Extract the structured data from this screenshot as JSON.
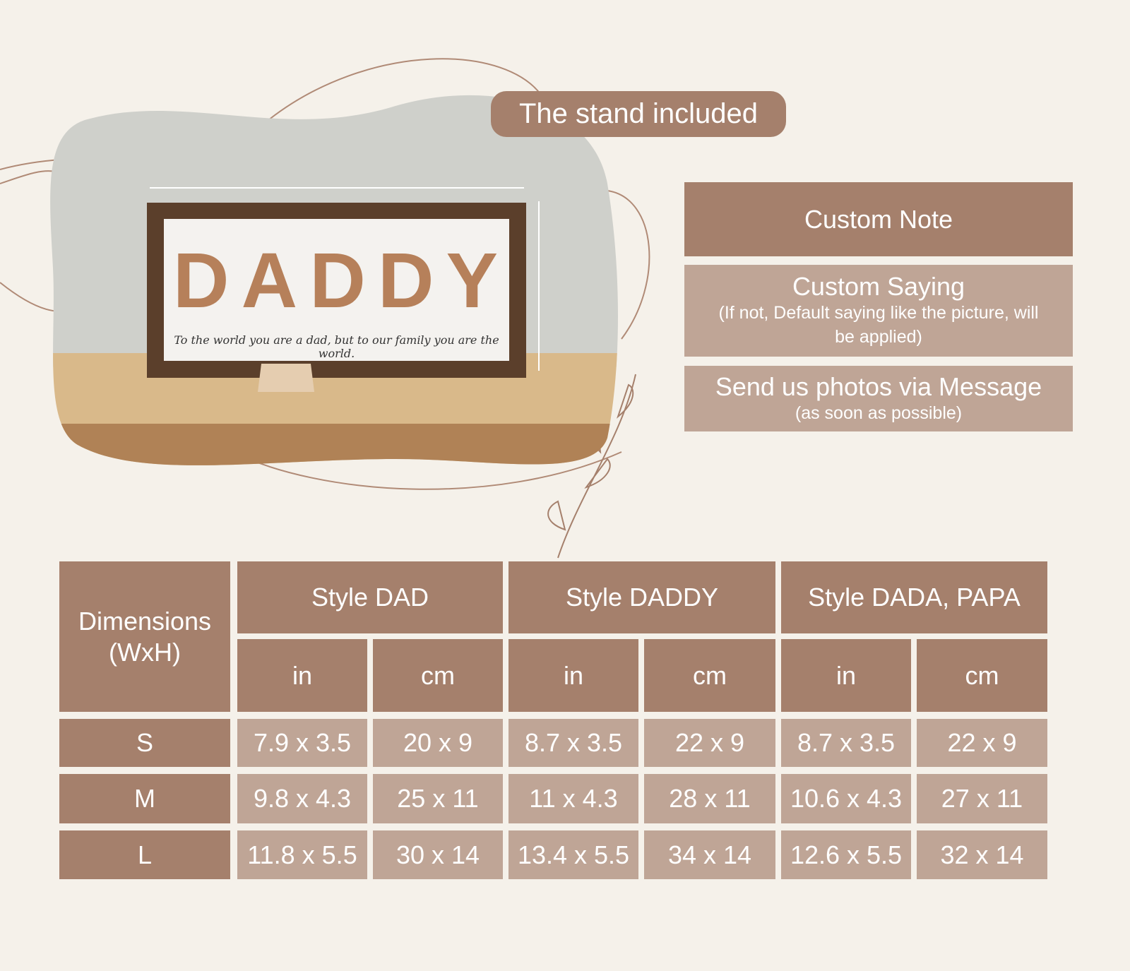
{
  "banner": {
    "stand_label": "The stand included"
  },
  "product": {
    "letters": [
      "D",
      "A",
      "D",
      "D",
      "Y"
    ],
    "saying": "To the world you are a dad, but to our family you are the world."
  },
  "notes": [
    {
      "title": "Custom Note",
      "subtitle": ""
    },
    {
      "title": "Custom Saying",
      "subtitle": "(If not, Default saying like the picture, will be applied)"
    },
    {
      "title": "Send us photos via Message",
      "subtitle": "(as soon as possible)"
    }
  ],
  "table": {
    "corner": "Dimensions (WxH)",
    "styles": [
      "Style DAD",
      "Style DADDY",
      "Style DADA, PAPA"
    ],
    "units": [
      "in",
      "cm",
      "in",
      "cm",
      "in",
      "cm"
    ],
    "rows": [
      {
        "size": "S",
        "values": [
          "7.9 x 3.5",
          "20 x 9",
          "8.7 x 3.5",
          "22 x 9",
          "8.7 x 3.5",
          "22 x 9"
        ]
      },
      {
        "size": "M",
        "values": [
          "9.8 x 4.3",
          "25 x 11",
          "11 x 4.3",
          "28 x 11",
          "10.6 x 4.3",
          "27 x 11"
        ]
      },
      {
        "size": "L",
        "values": [
          "11.8 x 5.5",
          "30 x 14",
          "13.4 x 5.5",
          "34 x 14",
          "12.6 x 5.5",
          "32 x 14"
        ]
      }
    ]
  },
  "colors": {
    "background": "#f5f1ea",
    "dark_cell": "#a5806c",
    "light_cell": "#bfa596"
  }
}
